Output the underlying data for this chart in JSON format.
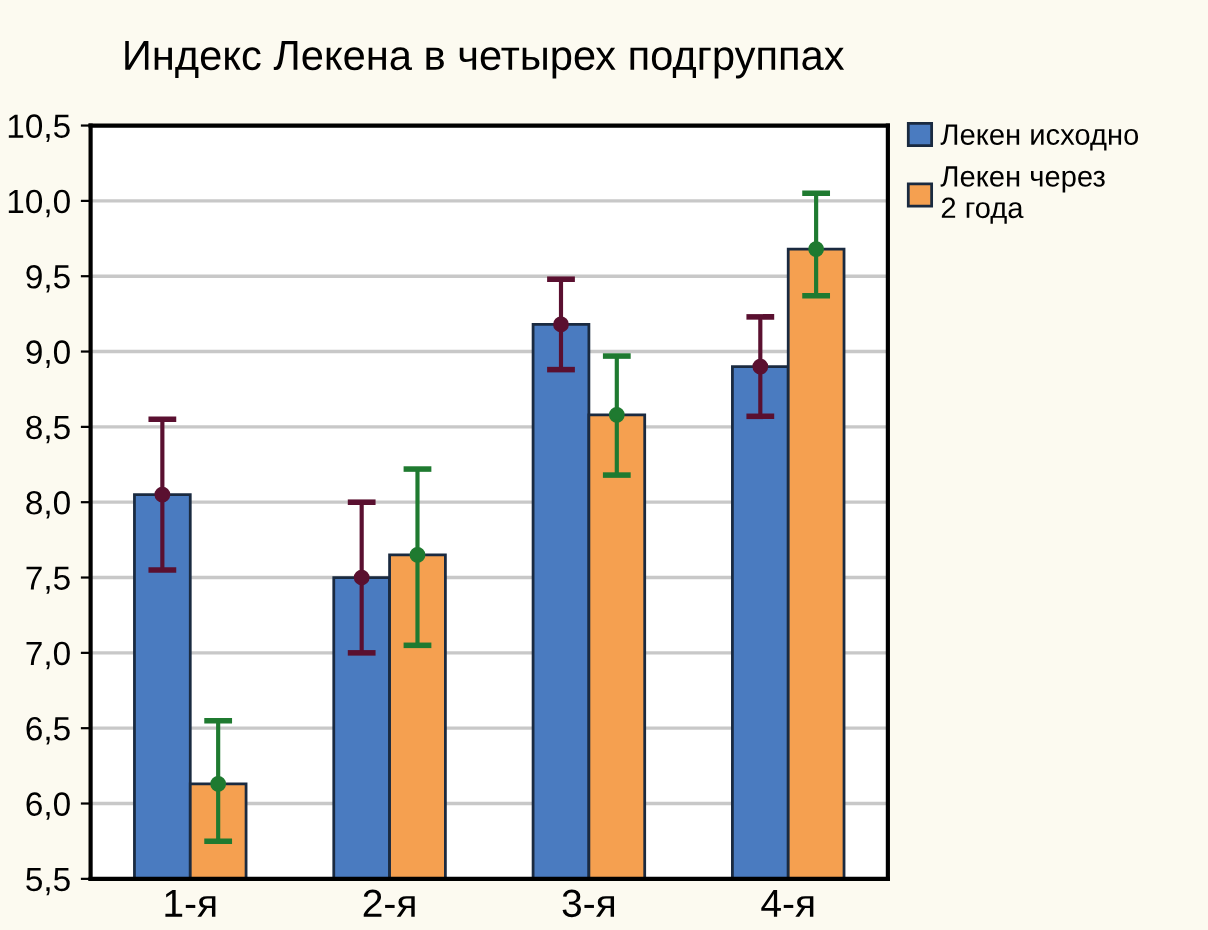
{
  "chart_data": {
    "type": "bar",
    "title": "Индекс Лекена в четырех подгруппах",
    "categories": [
      "1-я",
      "2-я",
      "3-я",
      "4-я"
    ],
    "series": [
      {
        "name": "Лекен исходно",
        "color": "#4a7bc0",
        "values": [
          8.05,
          7.5,
          9.18,
          8.9
        ],
        "errors": [
          [
            7.55,
            8.55
          ],
          [
            7.0,
            8.0
          ],
          [
            8.88,
            9.48
          ],
          [
            8.57,
            9.23
          ]
        ]
      },
      {
        "name": "Лекен через\n2 года",
        "color": "#f5a050",
        "values": [
          6.13,
          7.65,
          8.58,
          9.68
        ],
        "errors": [
          [
            5.75,
            6.55
          ],
          [
            7.05,
            8.22
          ],
          [
            8.18,
            8.97
          ],
          [
            9.37,
            10.05
          ]
        ]
      },
      {
        "type": "scatter",
        "color": "#5a1030",
        "x": [
          "1-я",
          "2-я",
          "3-я",
          "4-я"
        ],
        "values": [
          8.05,
          7.5,
          9.18,
          8.9
        ]
      },
      {
        "type": "scatter",
        "color": "#1f7a30",
        "x": [
          "1-я",
          "2-я",
          "3-я",
          "4-я"
        ],
        "values": [
          6.13,
          7.65,
          8.58,
          9.68
        ]
      }
    ],
    "ylim": [
      5.5,
      10.5
    ],
    "yticks": [
      {
        "value": 5.5,
        "label": "5,5"
      },
      {
        "value": 6.0,
        "label": "6,0"
      },
      {
        "value": 6.5,
        "label": "6,5"
      },
      {
        "value": 7.0,
        "label": "7,0"
      },
      {
        "value": 7.5,
        "label": "7,5"
      },
      {
        "value": 8.0,
        "label": "8,0"
      },
      {
        "value": 8.5,
        "label": "8,5"
      },
      {
        "value": 9.0,
        "label": "9,0"
      },
      {
        "value": 9.5,
        "label": "9,5"
      },
      {
        "value": 10.0,
        "label": "10,0"
      },
      {
        "value": 10.5,
        "label": "10,5"
      }
    ],
    "grid": "y",
    "legend": "top right",
    "marker": "circle"
  }
}
